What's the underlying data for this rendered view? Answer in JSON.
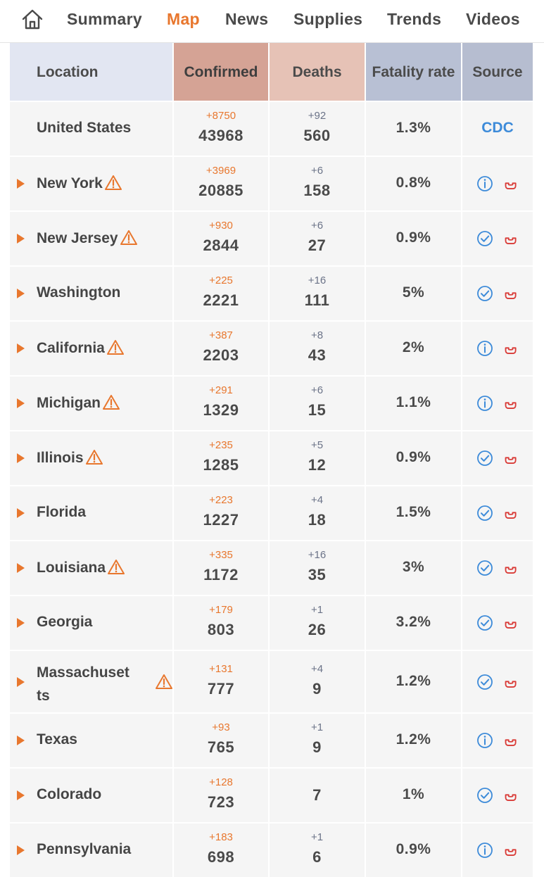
{
  "nav": {
    "home_icon": "home-icon",
    "tabs": [
      {
        "label": "Summary",
        "active": false
      },
      {
        "label": "Map",
        "active": true
      },
      {
        "label": "News",
        "active": false
      },
      {
        "label": "Supplies",
        "active": false
      },
      {
        "label": "Trends",
        "active": false
      },
      {
        "label": "Videos",
        "active": false
      }
    ]
  },
  "colors": {
    "accent": "#e8772e",
    "link": "#3d8bd9",
    "phone": "#d93a36"
  },
  "table": {
    "headers": {
      "location": "Location",
      "confirmed": "Confirmed",
      "deaths": "Deaths",
      "fatality": "Fatality rate",
      "source": "Source"
    },
    "total": {
      "location": "United States",
      "confirmed_delta": "+8750",
      "confirmed": "43968",
      "deaths_delta": "+92",
      "deaths": "560",
      "fatality": "1.3%",
      "source": "CDC"
    },
    "rows": [
      {
        "location": "New York",
        "warning": true,
        "confirmed_delta": "+3969",
        "confirmed": "20885",
        "deaths_delta": "+6",
        "deaths": "158",
        "fatality": "0.8%",
        "source_icon": "info-icon"
      },
      {
        "location": "New Jersey",
        "warning": true,
        "confirmed_delta": "+930",
        "confirmed": "2844",
        "deaths_delta": "+6",
        "deaths": "27",
        "fatality": "0.9%",
        "source_icon": "check-icon"
      },
      {
        "location": "Washington",
        "warning": false,
        "confirmed_delta": "+225",
        "confirmed": "2221",
        "deaths_delta": "+16",
        "deaths": "111",
        "fatality": "5%",
        "source_icon": "check-icon"
      },
      {
        "location": "California",
        "warning": true,
        "confirmed_delta": "+387",
        "confirmed": "2203",
        "deaths_delta": "+8",
        "deaths": "43",
        "fatality": "2%",
        "source_icon": "info-icon"
      },
      {
        "location": "Michigan",
        "warning": true,
        "confirmed_delta": "+291",
        "confirmed": "1329",
        "deaths_delta": "+6",
        "deaths": "15",
        "fatality": "1.1%",
        "source_icon": "info-icon"
      },
      {
        "location": "Illinois",
        "warning": true,
        "confirmed_delta": "+235",
        "confirmed": "1285",
        "deaths_delta": "+5",
        "deaths": "12",
        "fatality": "0.9%",
        "source_icon": "check-icon"
      },
      {
        "location": "Florida",
        "warning": false,
        "confirmed_delta": "+223",
        "confirmed": "1227",
        "deaths_delta": "+4",
        "deaths": "18",
        "fatality": "1.5%",
        "source_icon": "check-icon"
      },
      {
        "location": "Louisiana",
        "warning": true,
        "confirmed_delta": "+335",
        "confirmed": "1172",
        "deaths_delta": "+16",
        "deaths": "35",
        "fatality": "3%",
        "source_icon": "check-icon"
      },
      {
        "location": "Georgia",
        "warning": false,
        "confirmed_delta": "+179",
        "confirmed": "803",
        "deaths_delta": "+1",
        "deaths": "26",
        "fatality": "3.2%",
        "source_icon": "check-icon"
      },
      {
        "location": "Massachusetts",
        "warning": true,
        "confirmed_delta": "+131",
        "confirmed": "777",
        "deaths_delta": "+4",
        "deaths": "9",
        "fatality": "1.2%",
        "source_icon": "check-icon"
      },
      {
        "location": "Texas",
        "warning": false,
        "confirmed_delta": "+93",
        "confirmed": "765",
        "deaths_delta": "+1",
        "deaths": "9",
        "fatality": "1.2%",
        "source_icon": "info-icon"
      },
      {
        "location": "Colorado",
        "warning": false,
        "confirmed_delta": "+128",
        "confirmed": "723",
        "deaths_delta": "",
        "deaths": "7",
        "fatality": "1%",
        "source_icon": "check-icon"
      },
      {
        "location": "Pennsylvania",
        "warning": false,
        "confirmed_delta": "+183",
        "confirmed": "698",
        "deaths_delta": "+1",
        "deaths": "6",
        "fatality": "0.9%",
        "source_icon": "info-icon"
      }
    ]
  }
}
